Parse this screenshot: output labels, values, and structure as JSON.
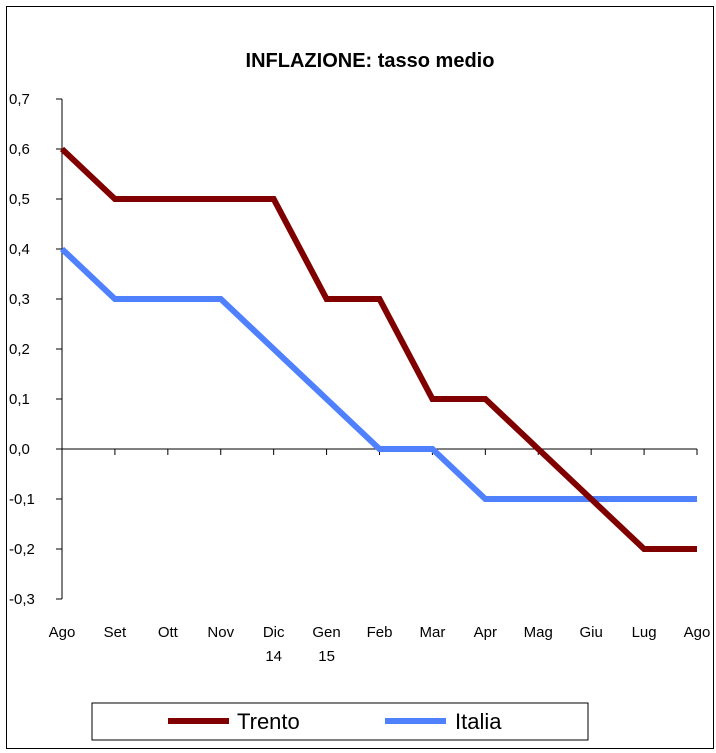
{
  "chart_data": {
    "type": "line",
    "title": "INFLAZIONE: tasso medio",
    "categories": [
      "Ago",
      "Set",
      "Ott",
      "Nov",
      "Dic",
      "Gen",
      "Feb",
      "Mar",
      "Apr",
      "Mag",
      "Giu",
      "Lug",
      "Ago"
    ],
    "category_sublabels": [
      "",
      "",
      "",
      "",
      "14",
      "15",
      "",
      "",
      "",
      "",
      "",
      "",
      ""
    ],
    "ylim": [
      -0.3,
      0.7
    ],
    "y_ticks": [
      "0,7",
      "0,6",
      "0,5",
      "0,4",
      "0,3",
      "0,2",
      "0,1",
      "0,0",
      "-0,1",
      "-0,2",
      "-0,3"
    ],
    "grid": false,
    "legend_position": "bottom",
    "series": [
      {
        "name": "Trento",
        "color": "#800000",
        "values": [
          0.6,
          0.5,
          0.5,
          0.5,
          0.5,
          0.3,
          0.3,
          0.1,
          0.1,
          0.0,
          -0.1,
          -0.2,
          -0.2
        ]
      },
      {
        "name": "Italia",
        "color": "#4F81FF",
        "values": [
          0.4,
          0.3,
          0.3,
          0.3,
          0.2,
          0.1,
          0.0,
          0.0,
          -0.1,
          -0.1,
          -0.1,
          -0.1,
          -0.1
        ]
      }
    ]
  }
}
